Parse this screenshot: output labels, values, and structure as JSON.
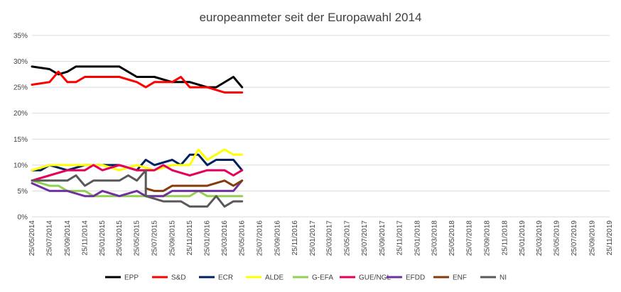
{
  "chart_data": {
    "type": "line",
    "title": "europeanmeter seit der Europawahl 2014",
    "xlabel": "",
    "ylabel": "",
    "ylim": [
      0,
      35
    ],
    "yticks": [
      "0%",
      "5%",
      "10%",
      "15%",
      "20%",
      "25%",
      "30%",
      "35%"
    ],
    "x_tick_labels": [
      "25/05/2014",
      "25/07/2014",
      "25/09/2014",
      "25/11/2014",
      "25/01/2015",
      "25/03/2015",
      "25/05/2015",
      "25/07/2015",
      "25/09/2015",
      "25/11/2015",
      "25/01/2016",
      "25/03/2016",
      "25/05/2016",
      "25/07/2016",
      "25/09/2016",
      "25/11/2016",
      "25/01/2017",
      "25/03/2017",
      "25/05/2017",
      "25/07/2017",
      "25/09/2017",
      "25/11/2017",
      "25/01/2018",
      "25/03/2018",
      "25/05/2018",
      "25/07/2018",
      "25/09/2018",
      "25/11/2018",
      "25/01/2019",
      "25/03/2019",
      "25/05/2019",
      "25/07/2019",
      "25/09/2019",
      "25/11/2019"
    ],
    "grid": true,
    "legend_position": "bottom",
    "series": [
      {
        "name": "EPP",
        "color": "#000000",
        "points": [
          [
            "25/05/2014",
            29
          ],
          [
            "25/07/2014",
            28.5
          ],
          [
            "25/08/2014",
            27.5
          ],
          [
            "25/09/2014",
            28
          ],
          [
            "25/10/2014",
            29
          ],
          [
            "25/11/2014",
            29
          ],
          [
            "25/01/2015",
            29
          ],
          [
            "25/03/2015",
            29
          ],
          [
            "25/05/2015",
            27
          ],
          [
            "25/07/2015",
            27
          ],
          [
            "25/08/2015",
            26.5
          ],
          [
            "25/09/2015",
            26
          ],
          [
            "25/11/2015",
            26
          ],
          [
            "25/01/2016",
            25
          ],
          [
            "25/02/2016",
            25
          ],
          [
            "25/04/2016",
            27
          ],
          [
            "25/05/2016",
            25
          ]
        ]
      },
      {
        "name": "S&D",
        "color": "#ff0000",
        "points": [
          [
            "25/05/2014",
            25.5
          ],
          [
            "25/07/2014",
            26
          ],
          [
            "25/08/2014",
            28
          ],
          [
            "25/09/2014",
            26
          ],
          [
            "25/10/2014",
            26
          ],
          [
            "25/11/2014",
            27
          ],
          [
            "25/01/2015",
            27
          ],
          [
            "25/03/2015",
            27
          ],
          [
            "25/05/2015",
            26
          ],
          [
            "25/06/2015",
            25
          ],
          [
            "25/07/2015",
            26
          ],
          [
            "25/09/2015",
            26
          ],
          [
            "25/10/2015",
            27
          ],
          [
            "25/11/2015",
            25
          ],
          [
            "25/01/2016",
            25
          ],
          [
            "25/03/2016",
            24
          ],
          [
            "25/05/2016",
            24
          ]
        ]
      },
      {
        "name": "ECR",
        "color": "#002060",
        "points": [
          [
            "25/05/2014",
            9
          ],
          [
            "25/06/2014",
            9
          ],
          [
            "25/07/2014",
            10
          ],
          [
            "25/09/2014",
            9
          ],
          [
            "25/11/2014",
            10
          ],
          [
            "25/01/2015",
            10
          ],
          [
            "25/03/2015",
            10
          ],
          [
            "25/05/2015",
            9
          ],
          [
            "25/06/2015",
            11
          ],
          [
            "25/07/2015",
            10
          ],
          [
            "25/09/2015",
            11
          ],
          [
            "25/10/2015",
            10
          ],
          [
            "25/11/2015",
            12
          ],
          [
            "25/12/2015",
            12
          ],
          [
            "25/01/2016",
            10
          ],
          [
            "25/02/2016",
            11
          ],
          [
            "25/04/2016",
            11
          ],
          [
            "25/05/2016",
            9
          ]
        ]
      },
      {
        "name": "ALDE",
        "color": "#ffff00",
        "points": [
          [
            "25/05/2014",
            9
          ],
          [
            "25/07/2014",
            10
          ],
          [
            "25/09/2014",
            10
          ],
          [
            "25/11/2014",
            10
          ],
          [
            "25/01/2015",
            10
          ],
          [
            "25/03/2015",
            9
          ],
          [
            "25/05/2015",
            10
          ],
          [
            "25/07/2015",
            9
          ],
          [
            "25/09/2015",
            10
          ],
          [
            "25/11/2015",
            10
          ],
          [
            "25/12/2015",
            13
          ],
          [
            "25/01/2016",
            11
          ],
          [
            "25/03/2016",
            13
          ],
          [
            "25/04/2016",
            12
          ],
          [
            "25/05/2016",
            12
          ]
        ]
      },
      {
        "name": "G-EFA",
        "color": "#92d050",
        "points": [
          [
            "25/05/2014",
            7
          ],
          [
            "25/07/2014",
            6
          ],
          [
            "25/08/2014",
            6
          ],
          [
            "25/09/2014",
            5
          ],
          [
            "25/11/2014",
            5
          ],
          [
            "25/12/2014",
            4
          ],
          [
            "25/03/2015",
            4
          ],
          [
            "25/05/2015",
            4
          ],
          [
            "25/07/2015",
            4
          ],
          [
            "25/09/2015",
            4
          ],
          [
            "25/11/2015",
            4
          ],
          [
            "25/12/2015",
            5
          ],
          [
            "25/01/2016",
            4
          ],
          [
            "25/03/2016",
            4
          ],
          [
            "25/05/2016",
            4
          ]
        ]
      },
      {
        "name": "GUE/NGL",
        "color": "#e6005c",
        "points": [
          [
            "25/05/2014",
            7
          ],
          [
            "25/07/2014",
            8
          ],
          [
            "25/09/2014",
            9
          ],
          [
            "25/11/2014",
            9
          ],
          [
            "25/12/2014",
            10
          ],
          [
            "25/01/2015",
            9
          ],
          [
            "25/03/2015",
            10
          ],
          [
            "25/05/2015",
            9
          ],
          [
            "25/07/2015",
            9
          ],
          [
            "25/08/2015",
            10
          ],
          [
            "25/09/2015",
            9
          ],
          [
            "25/11/2015",
            8
          ],
          [
            "25/01/2016",
            9
          ],
          [
            "25/03/2016",
            9
          ],
          [
            "25/04/2016",
            8
          ],
          [
            "25/05/2016",
            9
          ]
        ]
      },
      {
        "name": "EFDD",
        "color": "#7030a0",
        "points": [
          [
            "25/05/2014",
            6.5
          ],
          [
            "25/07/2014",
            5
          ],
          [
            "25/09/2014",
            5
          ],
          [
            "25/11/2014",
            4
          ],
          [
            "25/12/2014",
            4
          ],
          [
            "25/01/2015",
            5
          ],
          [
            "25/03/2015",
            4
          ],
          [
            "25/05/2015",
            5
          ],
          [
            "25/06/2015",
            4
          ],
          [
            "25/07/2015",
            4
          ],
          [
            "25/08/2015",
            4
          ],
          [
            "25/09/2015",
            5
          ],
          [
            "25/11/2015",
            5
          ],
          [
            "25/01/2016",
            5
          ],
          [
            "25/04/2016",
            5
          ],
          [
            "25/05/2016",
            7
          ]
        ]
      },
      {
        "name": "ENF",
        "color": "#843c0c",
        "points": [
          [
            "25/06/2015",
            5.5
          ],
          [
            "25/07/2015",
            5
          ],
          [
            "25/08/2015",
            5
          ],
          [
            "25/09/2015",
            6
          ],
          [
            "25/11/2015",
            6
          ],
          [
            "25/01/2016",
            6
          ],
          [
            "25/03/2016",
            7
          ],
          [
            "25/04/2016",
            6
          ],
          [
            "25/05/2016",
            7
          ]
        ]
      },
      {
        "name": "NI",
        "color": "#595959",
        "points": [
          [
            "25/05/2014",
            7
          ],
          [
            "25/07/2014",
            7
          ],
          [
            "25/09/2014",
            7
          ],
          [
            "25/10/2014",
            8
          ],
          [
            "25/11/2014",
            6
          ],
          [
            "25/12/2014",
            7
          ],
          [
            "25/03/2015",
            7
          ],
          [
            "25/04/2015",
            8
          ],
          [
            "25/05/2015",
            7
          ],
          [
            "25/06/2015",
            9
          ],
          [
            "25/06/2015",
            4
          ],
          [
            "25/08/2015",
            3
          ],
          [
            "25/10/2015",
            3
          ],
          [
            "25/11/2015",
            2
          ],
          [
            "25/01/2016",
            2
          ],
          [
            "25/02/2016",
            4
          ],
          [
            "25/03/2016",
            2
          ],
          [
            "25/04/2016",
            3
          ],
          [
            "25/05/2016",
            3
          ]
        ]
      }
    ]
  }
}
